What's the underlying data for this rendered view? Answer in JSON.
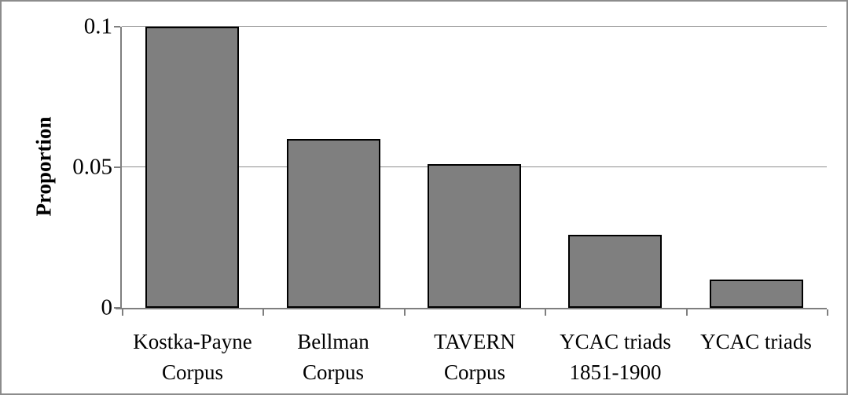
{
  "figure": {
    "background": "#ffffff",
    "frame_color": "#8c8c8c"
  },
  "chart_data": {
    "type": "bar",
    "title": "",
    "xlabel": "",
    "ylabel": "Proportion",
    "categories": [
      [
        "Kostka-Payne",
        "Corpus"
      ],
      [
        "Bellman",
        "Corpus"
      ],
      [
        "TAVERN",
        "Corpus"
      ],
      [
        "YCAC triads",
        "1851-1900"
      ],
      [
        "YCAC triads"
      ]
    ],
    "values": [
      0.1,
      0.06,
      0.051,
      0.026,
      0.01
    ],
    "ylim": [
      0,
      0.1
    ],
    "yticks": [
      {
        "value": 0,
        "label": "0"
      },
      {
        "value": 0.05,
        "label": "0.05"
      },
      {
        "value": 0.1,
        "label": "0.1"
      }
    ],
    "grid": true,
    "legend": null,
    "bar_fill": "#7f7f7f",
    "bar_border": "#000000",
    "gridline_color": "#8f8f8f",
    "axis_color": "#7f7f7f"
  }
}
